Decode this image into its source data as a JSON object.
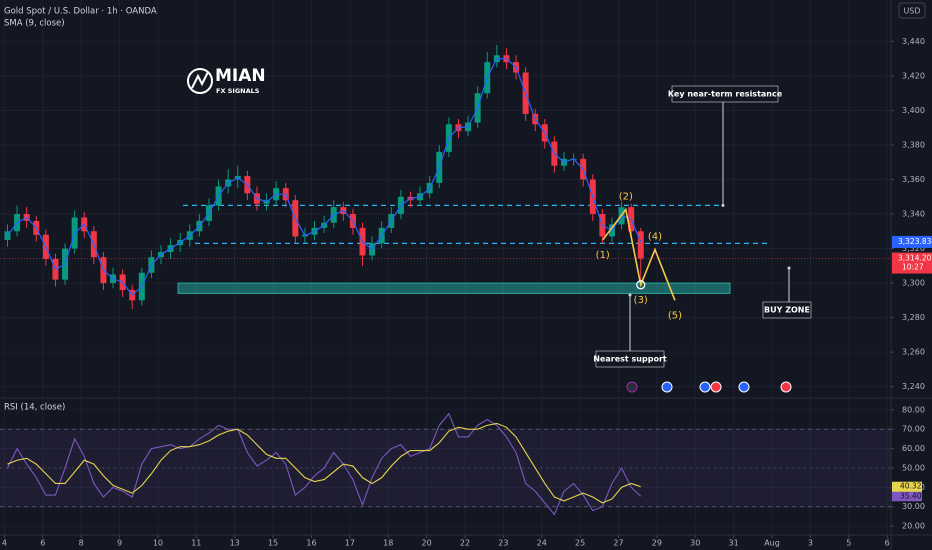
{
  "header": {
    "symbol": "Gold Spot / U.S. Dollar · 1h · OANDA",
    "currency": "USD"
  },
  "logo": {
    "name": "MIAN",
    "tagline": "FX SIGNALS"
  },
  "annotations": [
    "Key near-term resistance",
    "BUY ZONE",
    "Nearest support"
  ],
  "chart_data": [
    {
      "type": "candlestick",
      "x": [
        0.08,
        0.33,
        0.58,
        0.83,
        1.08,
        1.33,
        1.58,
        1.83,
        2.08,
        2.33,
        2.58,
        2.83,
        3.08,
        3.33,
        3.58,
        3.83,
        4.08,
        4.33,
        4.58,
        4.83,
        5.08,
        5.33,
        5.58,
        5.83,
        6.08,
        6.33,
        6.58,
        6.83,
        7.08,
        7.33,
        7.58,
        7.83,
        8.08,
        8.33,
        8.58,
        8.83,
        9.08,
        9.33,
        9.58,
        9.83,
        10.08,
        10.33,
        10.58,
        10.83,
        11.08,
        11.33,
        11.58,
        11.83,
        12.08,
        12.33,
        12.58,
        12.83,
        13.08,
        13.33,
        13.58,
        13.83,
        14.08,
        14.33,
        14.58,
        14.83,
        15.08,
        15.33,
        15.58,
        15.83,
        16.08,
        16.33,
        16.58
      ],
      "open": [
        3325,
        3330,
        3340,
        3336,
        3328,
        3314,
        3302,
        3320,
        3338,
        3330,
        3315,
        3300,
        3305,
        3296,
        3290,
        3306,
        3315,
        3318,
        3322,
        3325,
        3330,
        3336,
        3345,
        3356,
        3360,
        3362,
        3352,
        3346,
        3348,
        3355,
        3348,
        3327,
        3328,
        3332,
        3335,
        3344,
        3340,
        3332,
        3316,
        3323,
        3332,
        3340,
        3350,
        3348,
        3352,
        3358,
        3376,
        3392,
        3388,
        3393,
        3410,
        3428,
        3432,
        3428,
        3422,
        3398,
        3392,
        3382,
        3368,
        3372,
        3372,
        3360,
        3340,
        3327,
        3334,
        3344,
        3330
      ],
      "high": [
        3334,
        3345,
        3344,
        3339,
        3331,
        3317,
        3323,
        3342,
        3341,
        3333,
        3318,
        3309,
        3308,
        3299,
        3309,
        3319,
        3322,
        3326,
        3329,
        3334,
        3340,
        3349,
        3360,
        3366,
        3368,
        3365,
        3356,
        3352,
        3359,
        3358,
        3351,
        3332,
        3336,
        3339,
        3348,
        3347,
        3343,
        3335,
        3327,
        3336,
        3344,
        3354,
        3353,
        3356,
        3362,
        3380,
        3396,
        3395,
        3397,
        3414,
        3434,
        3438,
        3436,
        3432,
        3425,
        3401,
        3395,
        3385,
        3376,
        3375,
        3375,
        3363,
        3343,
        3338,
        3347,
        3346,
        3332
      ],
      "low": [
        3321,
        3327,
        3332,
        3324,
        3310,
        3298,
        3299,
        3317,
        3326,
        3311,
        3296,
        3297,
        3292,
        3285,
        3287,
        3303,
        3311,
        3314,
        3318,
        3321,
        3327,
        3333,
        3342,
        3352,
        3355,
        3348,
        3342,
        3342,
        3345,
        3344,
        3323,
        3323,
        3325,
        3329,
        3332,
        3336,
        3328,
        3310,
        3313,
        3320,
        3329,
        3337,
        3344,
        3345,
        3349,
        3355,
        3373,
        3384,
        3385,
        3390,
        3407,
        3425,
        3424,
        3418,
        3394,
        3388,
        3378,
        3364,
        3365,
        3368,
        3356,
        3336,
        3323,
        3324,
        3331,
        3326,
        3298
      ],
      "close": [
        3330,
        3340,
        3336,
        3328,
        3314,
        3302,
        3320,
        3338,
        3330,
        3315,
        3300,
        3305,
        3296,
        3290,
        3306,
        3315,
        3318,
        3322,
        3325,
        3330,
        3336,
        3345,
        3356,
        3360,
        3362,
        3352,
        3346,
        3348,
        3355,
        3348,
        3327,
        3328,
        3332,
        3335,
        3344,
        3340,
        3332,
        3316,
        3323,
        3332,
        3340,
        3350,
        3348,
        3352,
        3358,
        3376,
        3392,
        3388,
        3393,
        3410,
        3428,
        3432,
        3428,
        3422,
        3398,
        3392,
        3382,
        3368,
        3372,
        3372,
        3360,
        3340,
        3327,
        3334,
        3344,
        3330,
        3314.205
      ],
      "last_label": "3,314.205",
      "countdown": "10:27",
      "up_color": "#089981",
      "down_color": "#f23645",
      "series": [
        {
          "name": "SMA (9, close)",
          "color": "#2962ff",
          "last_label": "3,323.834",
          "values": [
            3327.5,
            3335,
            3338,
            3332,
            3321,
            3308,
            3311,
            3329,
            3334,
            3322.5,
            3307.5,
            3302.5,
            3300.5,
            3293,
            3298,
            3310.5,
            3316.5,
            3320,
            3323.5,
            3327.5,
            3333,
            3340.5,
            3350.5,
            3358,
            3361,
            3357,
            3349,
            3347,
            3351.5,
            3351.5,
            3337.5,
            3327.5,
            3330,
            3333.5,
            3339.5,
            3342,
            3336,
            3324,
            3319.5,
            3327.5,
            3336,
            3345,
            3349,
            3350,
            3355,
            3367,
            3384,
            3390,
            3390.5,
            3401.5,
            3419,
            3430,
            3430,
            3425,
            3410,
            3395,
            3387,
            3375,
            3370,
            3372,
            3366,
            3350,
            3333.5,
            3330.5,
            3339,
            3337,
            3323.834
          ]
        }
      ],
      "levels": [
        {
          "value": 3345,
          "color": "#29b6f6"
        },
        {
          "value": 3323,
          "color": "#29b6f6"
        }
      ],
      "zone": {
        "range": [
          3294,
          3300
        ],
        "color": "#26a69a"
      },
      "waves": {
        "x": [
          15.59,
          16.19,
          16.58,
          16.95,
          17.47
        ],
        "values": [
          3325,
          3342.6,
          3299,
          3319.4,
          3290
        ],
        "labels": [
          "(1)",
          "(2)",
          "(3)",
          "(4)",
          "(5)"
        ],
        "color": "#f7c948"
      },
      "xlim": [
        -0.115,
        23.1
      ],
      "xticks": [
        {
          "value": 0,
          "label": "4"
        },
        {
          "value": 1,
          "label": "6"
        },
        {
          "value": 2,
          "label": "8"
        },
        {
          "value": 3,
          "label": "9"
        },
        {
          "value": 4,
          "label": "10"
        },
        {
          "value": 5,
          "label": "11"
        },
        {
          "value": 6,
          "label": "13"
        },
        {
          "value": 7,
          "label": "15"
        },
        {
          "value": 8,
          "label": "16"
        },
        {
          "value": 9,
          "label": "17"
        },
        {
          "value": 10,
          "label": "18"
        },
        {
          "value": 11,
          "label": "20"
        },
        {
          "value": 12,
          "label": "22"
        },
        {
          "value": 13,
          "label": "23"
        },
        {
          "value": 14,
          "label": "24"
        },
        {
          "value": 15,
          "label": "25"
        },
        {
          "value": 16,
          "label": "27"
        },
        {
          "value": 17,
          "label": "29"
        },
        {
          "value": 18,
          "label": "30"
        },
        {
          "value": 19,
          "label": "31"
        },
        {
          "value": 20,
          "label": "Aug"
        },
        {
          "value": 21,
          "label": "3"
        },
        {
          "value": 22,
          "label": "5"
        },
        {
          "value": 23,
          "label": "6"
        }
      ],
      "ylim": [
        3234,
        3464
      ],
      "yticks": [
        {
          "value": 3240,
          "label": "3,240"
        },
        {
          "value": 3260,
          "label": "3,260"
        },
        {
          "value": 3280,
          "label": "3,280"
        },
        {
          "value": 3300,
          "label": "3,300"
        },
        {
          "value": 3320,
          "label": "3,320"
        },
        {
          "value": 3340,
          "label": "3,340"
        },
        {
          "value": 3360,
          "label": "3,360"
        },
        {
          "value": 3380,
          "label": "3,380"
        },
        {
          "value": 3400,
          "label": "3,400"
        },
        {
          "value": 3420,
          "label": "3,420"
        },
        {
          "value": 3440,
          "label": "3,440"
        }
      ],
      "grid": true
    },
    {
      "type": "line",
      "title": "RSI (14, close)",
      "series": [
        {
          "color": "#7e57c2",
          "last_label": "35.40",
          "values": [
            50,
            60,
            52,
            45,
            36,
            36,
            50,
            65,
            56,
            42,
            35,
            40,
            38,
            35,
            52,
            60,
            61,
            62,
            60,
            61,
            65,
            68,
            72,
            70,
            70,
            58,
            51,
            54,
            58,
            52,
            36,
            40,
            46,
            50,
            58,
            52,
            44,
            31,
            45,
            55,
            60,
            62,
            56,
            58,
            60,
            72,
            78,
            66,
            66,
            72,
            75,
            72,
            66,
            58,
            42,
            38,
            32,
            26,
            38,
            42,
            36,
            28,
            30,
            42,
            50,
            40,
            35.4
          ]
        },
        {
          "color": "#e8d44d",
          "last_label": "40.32",
          "values": [
            52,
            54,
            55,
            52,
            47,
            42,
            42,
            48,
            54,
            52,
            46,
            41,
            39,
            37,
            41,
            47,
            54,
            59,
            61,
            61,
            62,
            64,
            67,
            69,
            70,
            67,
            62,
            57,
            55,
            55,
            50,
            45,
            43,
            44,
            48,
            52,
            51,
            45,
            42,
            45,
            51,
            56,
            59,
            59,
            59,
            63,
            69,
            71,
            70,
            70,
            72,
            73,
            71,
            66,
            58,
            50,
            42,
            35,
            33,
            35,
            37,
            35,
            32,
            34,
            40,
            42,
            40.32
          ]
        }
      ],
      "bands": [
        30,
        70
      ],
      "ylim": [
        15.4,
        85.6
      ],
      "yticks": [
        {
          "value": 20,
          "label": "20.00"
        },
        {
          "value": 30,
          "label": "30.00"
        },
        {
          "value": 40,
          "label": "40.00"
        },
        {
          "value": 50,
          "label": "50.00"
        },
        {
          "value": 60,
          "label": "60.00"
        },
        {
          "value": 70,
          "label": "70.00"
        },
        {
          "value": 80,
          "label": "80.00"
        }
      ],
      "grid": true
    }
  ]
}
